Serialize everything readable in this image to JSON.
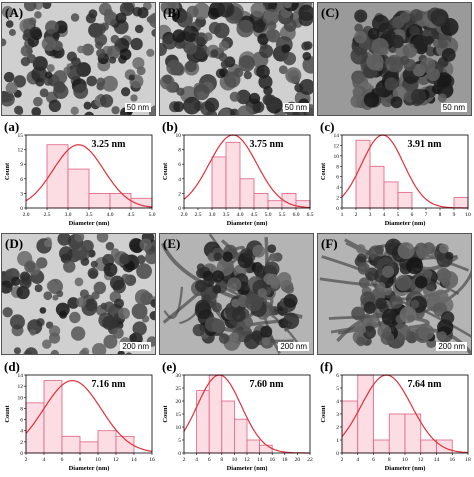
{
  "images": [
    {
      "label": "(A)",
      "scale": "50 nm",
      "tone": "light"
    },
    {
      "label": "(B)",
      "scale": "50 nm",
      "tone": "medium"
    },
    {
      "label": "(C)",
      "scale": "50 nm",
      "tone": "dark"
    },
    {
      "label": "(D)",
      "scale": "200 nm",
      "tone": "light"
    },
    {
      "label": "(E)",
      "scale": "200 nm",
      "tone": "tubes"
    },
    {
      "label": "(F)",
      "scale": "200 nm",
      "tone": "tubes"
    }
  ],
  "chart_data": [
    {
      "type": "bar",
      "label": "(a)",
      "annotation": "3.25 nm",
      "xlabel": "Diameter (nm)",
      "ylabel": "Count",
      "xlim": [
        2.0,
        5.0
      ],
      "ylim": [
        0,
        15
      ],
      "xticks": [
        "2.0",
        "2.5",
        "3.0",
        "3.5",
        "4.0",
        "4.5",
        "5.0"
      ],
      "yticks": [
        0,
        3,
        6,
        9,
        12,
        15
      ],
      "bins": [
        [
          2.5,
          3.0
        ],
        [
          3.0,
          3.5
        ],
        [
          3.5,
          4.0
        ],
        [
          4.0,
          4.5
        ],
        [
          4.5,
          5.0
        ]
      ],
      "values": [
        13,
        8,
        3,
        3,
        2
      ],
      "fit_mean": 3.25,
      "fit_peak": 13,
      "fit_sigma": 0.6
    },
    {
      "type": "bar",
      "label": "(b)",
      "annotation": "3.75 nm",
      "xlabel": "Diameter (nm)",
      "ylabel": "Count",
      "xlim": [
        2.0,
        6.5
      ],
      "ylim": [
        0,
        10
      ],
      "xticks": [
        "2.0",
        "2.5",
        "3.0",
        "3.5",
        "4.0",
        "4.5",
        "5.0",
        "5.5",
        "6.0",
        "6.5"
      ],
      "yticks": [
        0,
        2,
        4,
        6,
        8,
        10
      ],
      "bins": [
        [
          3.0,
          3.5
        ],
        [
          3.5,
          4.0
        ],
        [
          4.0,
          4.5
        ],
        [
          4.5,
          5.0
        ],
        [
          5.0,
          5.5
        ],
        [
          5.5,
          6.0
        ],
        [
          6.0,
          6.5
        ]
      ],
      "values": [
        7,
        9,
        4,
        2,
        1,
        2,
        1
      ],
      "fit_mean": 3.75,
      "fit_peak": 10,
      "fit_sigma": 0.85
    },
    {
      "type": "bar",
      "label": "(c)",
      "annotation": "3.91 nm",
      "xlabel": "Diameter (nm)",
      "ylabel": "Count",
      "xlim": [
        1,
        10
      ],
      "ylim": [
        0,
        14
      ],
      "xticks": [
        "1",
        "2",
        "3",
        "4",
        "5",
        "6",
        "7",
        "8",
        "9",
        "10"
      ],
      "yticks": [
        0,
        2,
        4,
        6,
        8,
        10,
        12,
        14
      ],
      "bins": [
        [
          2,
          3
        ],
        [
          3,
          4
        ],
        [
          4,
          5
        ],
        [
          5,
          6
        ],
        [
          9,
          10
        ]
      ],
      "values": [
        13,
        8,
        5,
        3,
        2
      ],
      "fit_mean": 3.91,
      "fit_peak": 14,
      "fit_sigma": 1.5
    },
    {
      "type": "bar",
      "label": "(d)",
      "annotation": "7.16 nm",
      "xlabel": "Diameter (nm)",
      "ylabel": "Count",
      "xlim": [
        2,
        16
      ],
      "ylim": [
        0,
        14
      ],
      "xticks": [
        "2",
        "4",
        "6",
        "8",
        "10",
        "12",
        "14",
        "16"
      ],
      "yticks": [
        0,
        2,
        4,
        6,
        8,
        10,
        12,
        14
      ],
      "bins": [
        [
          2,
          4
        ],
        [
          4,
          6
        ],
        [
          6,
          8
        ],
        [
          8,
          10
        ],
        [
          10,
          12
        ],
        [
          12,
          14
        ]
      ],
      "values": [
        9,
        13,
        3,
        2,
        4,
        3
      ],
      "fit_mean": 7.16,
      "fit_peak": 13,
      "fit_sigma": 3.2
    },
    {
      "type": "bar",
      "label": "(e)",
      "annotation": "7.60 nm",
      "xlabel": "Diameter (nm)",
      "ylabel": "Count",
      "xlim": [
        2,
        22
      ],
      "ylim": [
        0,
        30
      ],
      "xticks": [
        "2",
        "4",
        "6",
        "8",
        "10",
        "12",
        "14",
        "16",
        "18",
        "20",
        "22"
      ],
      "yticks": [
        0,
        5,
        10,
        15,
        20,
        25,
        30
      ],
      "bins": [
        [
          4,
          6
        ],
        [
          6,
          8
        ],
        [
          8,
          10
        ],
        [
          10,
          12
        ],
        [
          12,
          14
        ],
        [
          14,
          16
        ]
      ],
      "values": [
        24,
        30,
        20,
        13,
        5,
        3
      ],
      "fit_mean": 7.6,
      "fit_peak": 30,
      "fit_sigma": 3.5
    },
    {
      "type": "bar",
      "label": "(f)",
      "annotation": "7.64 nm",
      "xlabel": "Diameter (nm)",
      "ylabel": "Count",
      "xlim": [
        2,
        18
      ],
      "ylim": [
        0,
        6
      ],
      "xticks": [
        "2",
        "4",
        "6",
        "8",
        "10",
        "12",
        "14",
        "16",
        "18"
      ],
      "yticks": [
        0,
        1,
        2,
        3,
        4,
        5,
        6
      ],
      "bins": [
        [
          2,
          4
        ],
        [
          4,
          6
        ],
        [
          6,
          8
        ],
        [
          8,
          10
        ],
        [
          10,
          12
        ],
        [
          12,
          14
        ],
        [
          14,
          16
        ]
      ],
      "values": [
        4,
        6,
        1,
        3,
        3,
        1,
        1
      ],
      "fit_mean": 7.64,
      "fit_peak": 6,
      "fit_sigma": 3.2
    }
  ],
  "colors": {
    "bar_fill": "#fcdde4",
    "bar_stroke": "#e06080",
    "fit_line": "#e0303a",
    "annotation": "#000000"
  }
}
